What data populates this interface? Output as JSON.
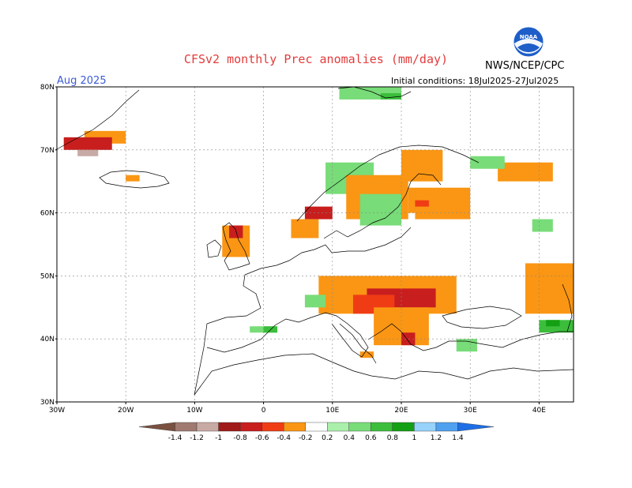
{
  "title": "CFSv2 monthly Prec anomalies (mm/day)",
  "agency": "NWS/NCEP/CPC",
  "logo_text": "NOAA",
  "month_label": "Aug 2025",
  "initial_conditions": "Initial conditions: 18Jul2025-27Jul2025",
  "map": {
    "lon_range": [
      -30,
      45
    ],
    "lat_range": [
      30,
      80
    ],
    "lat_ticks": [
      "30N",
      "40N",
      "50N",
      "60N",
      "70N",
      "80N"
    ],
    "lon_ticks": [
      "30W",
      "20W",
      "10W",
      "0",
      "10E",
      "20E",
      "30E",
      "40E"
    ],
    "gridlines": "dashed"
  },
  "legend": {
    "ticks": [
      "-1.4",
      "-1.2",
      "-1",
      "-0.8",
      "-0.6",
      "-0.4",
      "-0.2",
      "0.2",
      "0.4",
      "0.6",
      "0.8",
      "1",
      "1.2",
      "1.4"
    ],
    "colors": [
      "#7a5040",
      "#a07a70",
      "#c8aaa4",
      "#a01a1a",
      "#c81e1e",
      "#f03c14",
      "#fa9614",
      "#ffffff",
      "#aaf0aa",
      "#78dc78",
      "#3cbe3c",
      "#14a014",
      "#96d2fa",
      "#50a0f0",
      "#1e6ee6"
    ]
  },
  "colors": {
    "orange": "#fa9614",
    "red_orange": "#f03c14",
    "red": "#c81e1e",
    "dark_red": "#a01a1a",
    "brown": "#a07a70",
    "light_green": "#aaf0aa",
    "green": "#78dc78",
    "mid_green": "#3cbe3c",
    "dark_green": "#14a014"
  },
  "anomaly_patches": [
    {
      "region": "Iceland / Denmark Strait",
      "value": -0.4,
      "lon": [
        -26,
        -20
      ],
      "lat": [
        71,
        73
      ]
    },
    {
      "region": "Iceland / Denmark Strait",
      "value": -0.8,
      "lon": [
        -29,
        -22
      ],
      "lat": [
        70,
        72
      ]
    },
    {
      "region": "Iceland / Denmark Strait",
      "value": -1.2,
      "lon": [
        -27,
        -24
      ],
      "lat": [
        69,
        70
      ]
    },
    {
      "region": "Iceland",
      "value": -0.4,
      "lon": [
        -20,
        -18
      ],
      "lat": [
        65,
        66
      ]
    },
    {
      "region": "Svalbard / Barents",
      "value": 0.4,
      "lon": [
        11,
        20
      ],
      "lat": [
        78,
        80
      ]
    },
    {
      "region": "Svalbard / Barents",
      "value": 0.6,
      "lon": [
        17,
        20
      ],
      "lat": [
        78,
        79
      ]
    },
    {
      "region": "Norway west coast",
      "value": -0.8,
      "lon": [
        6,
        10
      ],
      "lat": [
        59,
        61
      ]
    },
    {
      "region": "Norway",
      "value": -0.4,
      "lon": [
        4,
        8
      ],
      "lat": [
        56,
        59
      ]
    },
    {
      "region": "Scandinavia north",
      "value": 0.4,
      "lon": [
        9,
        16
      ],
      "lat": [
        63,
        68
      ]
    },
    {
      "region": "Sweden / Finland",
      "value": -0.4,
      "lon": [
        12,
        21
      ],
      "lat": [
        59,
        66
      ]
    },
    {
      "region": "Sweden / Finland",
      "value": -0.4,
      "lon": [
        20,
        26
      ],
      "lat": [
        65,
        70
      ]
    },
    {
      "region": "Sweden",
      "value": 0.4,
      "lon": [
        14,
        20
      ],
      "lat": [
        58,
        63
      ]
    },
    {
      "region": "Finland east",
      "value": -0.4,
      "lon": [
        21,
        30
      ],
      "lat": [
        60,
        64
      ]
    },
    {
      "region": "Finland",
      "value": -0.6,
      "lon": [
        22,
        24
      ],
      "lat": [
        60,
        62
      ]
    },
    {
      "region": "Baltics",
      "value": -0.4,
      "lon": [
        22,
        30
      ],
      "lat": [
        59,
        61
      ]
    },
    {
      "region": "NW Russia",
      "value": -0.4,
      "lon": [
        34,
        42
      ],
      "lat": [
        65,
        68
      ]
    },
    {
      "region": "NW Russia",
      "value": 0.4,
      "lon": [
        30,
        35
      ],
      "lat": [
        67,
        69
      ]
    },
    {
      "region": "British Isles",
      "value": -0.4,
      "lon": [
        -6,
        -2
      ],
      "lat": [
        53,
        58
      ]
    },
    {
      "region": "Scotland",
      "value": -0.8,
      "lon": [
        -5,
        -3
      ],
      "lat": [
        56,
        58
      ]
    },
    {
      "region": "Central Europe",
      "value": -0.4,
      "lon": [
        8,
        28
      ],
      "lat": [
        44,
        50
      ]
    },
    {
      "region": "Pannonian basin",
      "value": -0.8,
      "lon": [
        15,
        25
      ],
      "lat": [
        45,
        48
      ]
    },
    {
      "region": "Pannonian basin",
      "value": -0.6,
      "lon": [
        13,
        19
      ],
      "lat": [
        44,
        47
      ]
    },
    {
      "region": "Balkans",
      "value": -0.4,
      "lon": [
        16,
        24
      ],
      "lat": [
        39,
        45
      ]
    },
    {
      "region": "Greece",
      "value": -0.8,
      "lon": [
        20,
        22
      ],
      "lat": [
        39,
        41
      ]
    },
    {
      "region": "Alps",
      "value": 0.4,
      "lon": [
        6,
        9
      ],
      "lat": [
        45,
        47
      ]
    },
    {
      "region": "Iberia north",
      "value": 0.4,
      "lon": [
        -2,
        2
      ],
      "lat": [
        41,
        42
      ]
    },
    {
      "region": "Iberia north",
      "value": 0.6,
      "lon": [
        0,
        2
      ],
      "lat": [
        41,
        42
      ]
    },
    {
      "region": "Italy south",
      "value": -0.4,
      "lon": [
        14,
        16
      ],
      "lat": [
        37,
        38
      ]
    },
    {
      "region": "Turkey",
      "value": 0.4,
      "lon": [
        28,
        31
      ],
      "lat": [
        38,
        40
      ]
    },
    {
      "region": "Southern Russia",
      "value": -0.4,
      "lon": [
        38,
        45
      ],
      "lat": [
        44,
        52
      ]
    },
    {
      "region": "Caucasus",
      "value": 0.6,
      "lon": [
        40,
        45
      ],
      "lat": [
        41,
        43
      ]
    },
    {
      "region": "Caucasus",
      "value": 0.8,
      "lon": [
        41,
        43
      ],
      "lat": [
        42,
        43
      ]
    },
    {
      "region": "Russia central",
      "value": 0.4,
      "lon": [
        39,
        42
      ],
      "lat": [
        57,
        59
      ]
    }
  ]
}
